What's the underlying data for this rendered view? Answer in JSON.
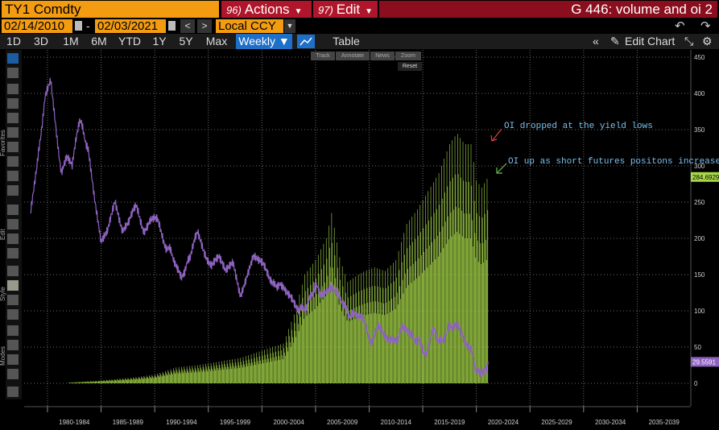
{
  "header": {
    "ticker": "TY1 Comdty",
    "actions": {
      "num": "96)",
      "label": "Actions"
    },
    "edit": {
      "num": "97)",
      "label": "Edit"
    },
    "title": "G 446: volume and oi 2"
  },
  "date_range": {
    "start": "02/14/2010",
    "separator": "-",
    "end": "02/03/2021",
    "currency": "Local CCY"
  },
  "timeframes": [
    "1D",
    "3D",
    "1M",
    "6M",
    "YTD",
    "1Y",
    "5Y",
    "Max"
  ],
  "frequency": "Weekly ▼",
  "table_label": "Table",
  "edit_chart_label": "Edit Chart",
  "annotation_bar": [
    "Track",
    "Annotate",
    "News",
    "Zoom"
  ],
  "reset_label": "Reset",
  "side_labels": [
    "Favorites",
    "Edit",
    "Style",
    "Modes"
  ],
  "colors": {
    "price_line": "#8e63c0",
    "oi_bars": "#a8d84a",
    "axis_text": "#cfcfcf",
    "grid": "#6a6a6a",
    "annotation_text": "#7cc0f0"
  },
  "chart_data": {
    "type": "line",
    "x_tick_labels": [
      "1980-1984",
      "1985-1989",
      "1990-1994",
      "1995-1999",
      "2000-2004",
      "2005-2009",
      "2010-2014",
      "2015-2019",
      "2020-2024",
      "2025-2029",
      "2030-2034",
      "2035-2039"
    ],
    "ylim": [
      -15,
      460
    ],
    "y_ticks": [
      0,
      50,
      100,
      150,
      200,
      250,
      300,
      350,
      400,
      450
    ],
    "grid": true,
    "series": [
      {
        "kind": "line",
        "color": "#8e63c0",
        "points": [
          [
            1978.4,
            232
          ],
          [
            1979.0,
            300
          ],
          [
            1979.8,
            390
          ],
          [
            1980.3,
            415
          ],
          [
            1980.9,
            330
          ],
          [
            1981.3,
            290
          ],
          [
            1981.8,
            310
          ],
          [
            1982.3,
            300
          ],
          [
            1983.0,
            360
          ],
          [
            1983.8,
            325
          ],
          [
            1984.4,
            255
          ],
          [
            1985.0,
            195
          ],
          [
            1985.6,
            210
          ],
          [
            1986.3,
            250
          ],
          [
            1987.0,
            215
          ],
          [
            1987.6,
            225
          ],
          [
            1988.3,
            240
          ],
          [
            1989.0,
            215
          ],
          [
            1989.6,
            230
          ],
          [
            1990.3,
            220
          ],
          [
            1991.0,
            190
          ],
          [
            1991.8,
            170
          ],
          [
            1992.5,
            140
          ],
          [
            1993.3,
            175
          ],
          [
            1994.0,
            205
          ],
          [
            1994.6,
            180
          ],
          [
            1995.3,
            165
          ],
          [
            1996.0,
            175
          ],
          [
            1996.6,
            155
          ],
          [
            1997.3,
            165
          ],
          [
            1998.0,
            125
          ],
          [
            1998.6,
            150
          ],
          [
            1999.2,
            175
          ],
          [
            1999.8,
            165
          ],
          [
            2000.5,
            155
          ],
          [
            2001.2,
            140
          ],
          [
            2002.0,
            135
          ],
          [
            2002.7,
            120
          ],
          [
            2003.4,
            100
          ],
          [
            2004.2,
            110
          ],
          [
            2005.0,
            130
          ],
          [
            2005.8,
            125
          ],
          [
            2006.5,
            135
          ],
          [
            2007.2,
            115
          ],
          [
            2008.0,
            100
          ],
          [
            2008.8,
            95
          ],
          [
            2009.5,
            90
          ],
          [
            2010.2,
            55
          ],
          [
            2010.9,
            75
          ],
          [
            2011.6,
            70
          ],
          [
            2012.3,
            55
          ],
          [
            2013.1,
            80
          ],
          [
            2013.8,
            70
          ],
          [
            2014.6,
            60
          ],
          [
            2015.3,
            45
          ],
          [
            2016.0,
            70
          ],
          [
            2016.8,
            60
          ],
          [
            2017.6,
            75
          ],
          [
            2018.4,
            85
          ],
          [
            2019.0,
            60
          ],
          [
            2019.6,
            45
          ],
          [
            2020.0,
            20
          ],
          [
            2020.4,
            15
          ],
          [
            2020.9,
            22
          ],
          [
            2021.1,
            29.56
          ]
        ]
      },
      {
        "kind": "bars",
        "color": "#a8d84a",
        "points": [
          [
            1982,
            1
          ],
          [
            1985,
            4
          ],
          [
            1988,
            8
          ],
          [
            1990,
            12
          ],
          [
            1992,
            22
          ],
          [
            1994,
            25
          ],
          [
            1996,
            30
          ],
          [
            1998,
            35
          ],
          [
            2000,
            45
          ],
          [
            2002,
            55
          ],
          [
            2003,
            95
          ],
          [
            2004,
            150
          ],
          [
            2005,
            170
          ],
          [
            2006,
            200
          ],
          [
            2006.5,
            235
          ],
          [
            2007.3,
            170
          ],
          [
            2008,
            140
          ],
          [
            2009,
            150
          ],
          [
            2009.6,
            155
          ],
          [
            2010.5,
            160
          ],
          [
            2011.5,
            155
          ],
          [
            2012.5,
            170
          ],
          [
            2013.5,
            220
          ],
          [
            2014.5,
            240
          ],
          [
            2015.5,
            265
          ],
          [
            2016.5,
            290
          ],
          [
            2017.5,
            330
          ],
          [
            2018.2,
            345
          ],
          [
            2018.9,
            330
          ],
          [
            2019.5,
            330
          ],
          [
            2020,
            280
          ],
          [
            2020.5,
            270
          ],
          [
            2021.1,
            284.69
          ]
        ]
      }
    ],
    "last_value_labels": [
      "284.6929",
      "29.5591"
    ],
    "annotations": [
      {
        "text": "OI dropped at the yield lows",
        "arrow_color": "#e04040"
      },
      {
        "text": "OI up as short futures positons increase",
        "arrow_color": "#6fc04a"
      }
    ]
  }
}
